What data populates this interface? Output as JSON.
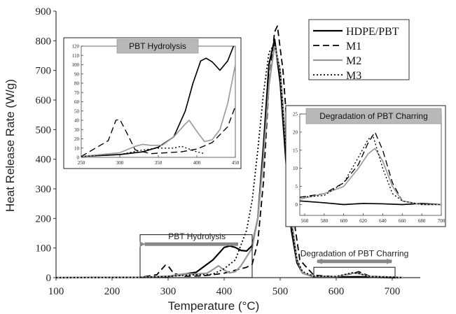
{
  "chart_data": [
    {
      "type": "line",
      "xlabel": "Temperature (°C)",
      "ylabel": "Heat Release Rate (W/g)",
      "xlim": [
        100,
        750
      ],
      "ylim": [
        0,
        900
      ],
      "xticks": [
        100,
        200,
        300,
        400,
        500,
        600,
        700
      ],
      "yticks": [
        0,
        100,
        200,
        300,
        400,
        500,
        600,
        700,
        800,
        900
      ],
      "legend_position": "top-right",
      "series": [
        {
          "name": "HDPE/PBT",
          "style": "solid",
          "color": "#000000",
          "x": [
            100,
            250,
            300,
            350,
            380,
            400,
            410,
            420,
            430,
            440,
            450,
            460,
            470,
            480,
            490,
            500,
            510,
            520,
            530,
            540,
            560,
            600,
            640,
            660,
            700,
            720
          ],
          "y": [
            0,
            1,
            4,
            18,
            60,
            102,
            107,
            102,
            92,
            90,
            108,
            200,
            440,
            720,
            805,
            660,
            400,
            160,
            50,
            15,
            3,
            2,
            3,
            2,
            0,
            0
          ]
        },
        {
          "name": "M1",
          "style": "dashed",
          "color": "#000000",
          "x": [
            100,
            250,
            280,
            295,
            300,
            310,
            330,
            360,
            380,
            400,
            420,
            440,
            450,
            460,
            470,
            480,
            490,
            495,
            505,
            515,
            525,
            535,
            560,
            600,
            630,
            640,
            660,
            700,
            720
          ],
          "y": [
            0,
            1,
            10,
            42,
            40,
            14,
            5,
            6,
            10,
            15,
            25,
            35,
            45,
            120,
            320,
            650,
            830,
            850,
            700,
            440,
            190,
            60,
            8,
            3,
            14,
            20,
            5,
            2,
            0
          ]
        },
        {
          "name": "M2",
          "style": "solid",
          "color": "#999999",
          "x": [
            100,
            250,
            300,
            330,
            350,
            370,
            390,
            400,
            410,
            420,
            430,
            440,
            450,
            460,
            470,
            480,
            490,
            500,
            510,
            520,
            530,
            540,
            560,
            600,
            630,
            640,
            660,
            700,
            720
          ],
          "y": [
            0,
            1,
            5,
            13,
            12,
            15,
            40,
            25,
            16,
            20,
            40,
            70,
            100,
            200,
            400,
            650,
            785,
            700,
            460,
            200,
            60,
            15,
            4,
            3,
            15,
            14,
            4,
            2,
            0
          ]
        },
        {
          "name": "M3",
          "style": "dotted",
          "color": "#000000",
          "x": [
            100,
            250,
            300,
            330,
            350,
            370,
            380,
            400,
            420,
            440,
            450,
            460,
            470,
            480,
            490,
            500,
            510,
            520,
            530,
            540,
            560,
            600,
            630,
            640,
            660,
            700,
            720
          ],
          "y": [
            0,
            1,
            4,
            8,
            10,
            10,
            12,
            30,
            60,
            160,
            260,
            430,
            620,
            760,
            790,
            700,
            420,
            180,
            60,
            20,
            5,
            4,
            17,
            14,
            4,
            2,
            0
          ]
        }
      ],
      "annotations": [
        {
          "text": "PBT Hydrolysis",
          "x_range": [
            250,
            450
          ],
          "y_top": 145
        },
        {
          "text": "Degradation of PBT Charring",
          "x_range": [
            560,
            705
          ],
          "y_top": 35
        }
      ]
    },
    {
      "type": "line",
      "title": "PBT Hydrolysis",
      "xlim": [
        250,
        450
      ],
      "ylim": [
        0,
        120
      ],
      "xticks": [
        250,
        300,
        350,
        400,
        450
      ],
      "yticks": [
        0,
        10,
        20,
        30,
        40,
        50,
        60,
        70,
        80,
        90,
        100,
        110,
        120
      ],
      "series": [
        {
          "name": "HDPE/PBT",
          "x": [
            250,
            300,
            330,
            350,
            370,
            385,
            395,
            405,
            412,
            420,
            430,
            440,
            450
          ],
          "y": [
            1,
            3,
            6,
            11,
            22,
            50,
            80,
            104,
            107,
            103,
            94,
            104,
            125
          ]
        },
        {
          "name": "M1",
          "x": [
            250,
            285,
            295,
            300,
            310,
            320,
            340,
            360,
            380,
            400,
            420,
            440,
            450
          ],
          "y": [
            1,
            18,
            40,
            41,
            25,
            8,
            4,
            5,
            6,
            9,
            16,
            33,
            55
          ]
        },
        {
          "name": "M2",
          "x": [
            250,
            300,
            320,
            330,
            340,
            355,
            370,
            385,
            390,
            400,
            410,
            420,
            430,
            440,
            450
          ],
          "y": [
            1,
            5,
            12,
            14,
            13,
            13,
            22,
            36,
            40,
            28,
            17,
            19,
            30,
            58,
            100
          ]
        },
        {
          "name": "M3",
          "x": [
            250,
            300,
            330,
            350,
            370,
            380,
            390,
            400,
            410
          ],
          "y": [
            1,
            3,
            8,
            10,
            10,
            12,
            9,
            6,
            4
          ]
        }
      ]
    },
    {
      "type": "line",
      "title": "Degradation of PBT Charring",
      "xlim": [
        555,
        700
      ],
      "ylim": [
        -3,
        25
      ],
      "xticks": [
        560,
        580,
        600,
        620,
        640,
        660,
        680,
        700
      ],
      "yticks": [
        0,
        5,
        10,
        15,
        20,
        25
      ],
      "series": [
        {
          "name": "HDPE/PBT",
          "x": [
            555,
            580,
            600,
            620,
            640,
            660,
            680,
            700
          ],
          "y": [
            1,
            0.5,
            0,
            0.3,
            0.2,
            0,
            0.3,
            0
          ]
        },
        {
          "name": "M1",
          "x": [
            555,
            580,
            600,
            615,
            625,
            632,
            640,
            650,
            660,
            680,
            700
          ],
          "y": [
            2,
            3,
            6,
            11,
            17,
            20,
            15,
            6,
            1,
            0,
            0
          ]
        },
        {
          "name": "M2",
          "x": [
            555,
            580,
            600,
            615,
            625,
            632,
            640,
            650,
            660,
            680,
            700
          ],
          "y": [
            1.5,
            3,
            5,
            10,
            14,
            15.5,
            12,
            5,
            1,
            0,
            0
          ]
        },
        {
          "name": "M3",
          "x": [
            555,
            580,
            600,
            615,
            625,
            630,
            640,
            650,
            660,
            680,
            700
          ],
          "y": [
            2,
            2.5,
            6,
            13,
            18,
            19,
            10,
            3,
            1,
            0,
            0
          ]
        }
      ]
    }
  ]
}
